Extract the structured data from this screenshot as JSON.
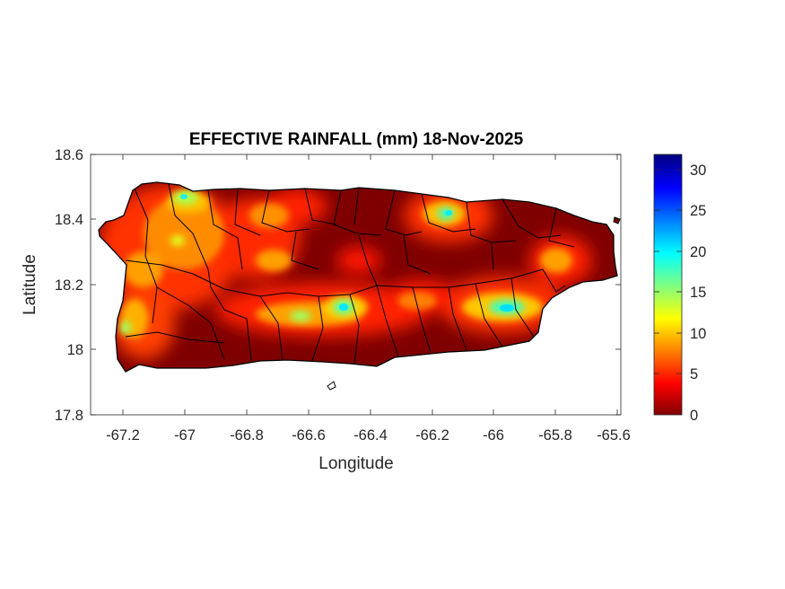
{
  "title": "EFFECTIVE RAINFALL (mm) 18-Nov-2025",
  "xlabel": "Longitude",
  "ylabel": "Latitude",
  "x_ticks": [
    "-67.2",
    "-67",
    "-66.8",
    "-66.6",
    "-66.4",
    "-66.2",
    "-66",
    "-65.8",
    "-65.6"
  ],
  "y_ticks": [
    "18.6",
    "18.4",
    "18.2",
    "18",
    "17.8"
  ],
  "colorbar": {
    "ticks": [
      "30",
      "25",
      "20",
      "15",
      "10",
      "5",
      "0"
    ],
    "range": [
      0,
      32
    ],
    "colormap": "jet",
    "colors": [
      "#7f0000",
      "#ff0000",
      "#ffff00",
      "#00ffff",
      "#0000ff",
      "#00007f"
    ]
  },
  "chart_data": {
    "type": "heatmap",
    "title": "EFFECTIVE RAINFALL (mm) 18-Nov-2025",
    "xlabel": "Longitude",
    "ylabel": "Latitude",
    "xlim": [
      -67.3,
      -65.58
    ],
    "ylim": [
      17.8,
      18.6
    ],
    "clim": [
      0,
      32
    ],
    "grid": false,
    "colorbar_placement": "right",
    "hotspots": [
      {
        "lon": -67.0,
        "lat": 18.47,
        "value": 22
      },
      {
        "lon": -67.05,
        "lat": 18.35,
        "value": 14
      },
      {
        "lon": -67.18,
        "lat": 18.06,
        "value": 18
      },
      {
        "lon": -66.47,
        "lat": 18.13,
        "value": 22
      },
      {
        "lon": -66.63,
        "lat": 18.11,
        "value": 20
      },
      {
        "lon": -66.15,
        "lat": 18.42,
        "value": 24
      },
      {
        "lon": -65.97,
        "lat": 18.13,
        "value": 22
      },
      {
        "lon": -65.88,
        "lat": 18.15,
        "value": 20
      },
      {
        "lon": -65.82,
        "lat": 18.25,
        "value": 12
      }
    ]
  }
}
